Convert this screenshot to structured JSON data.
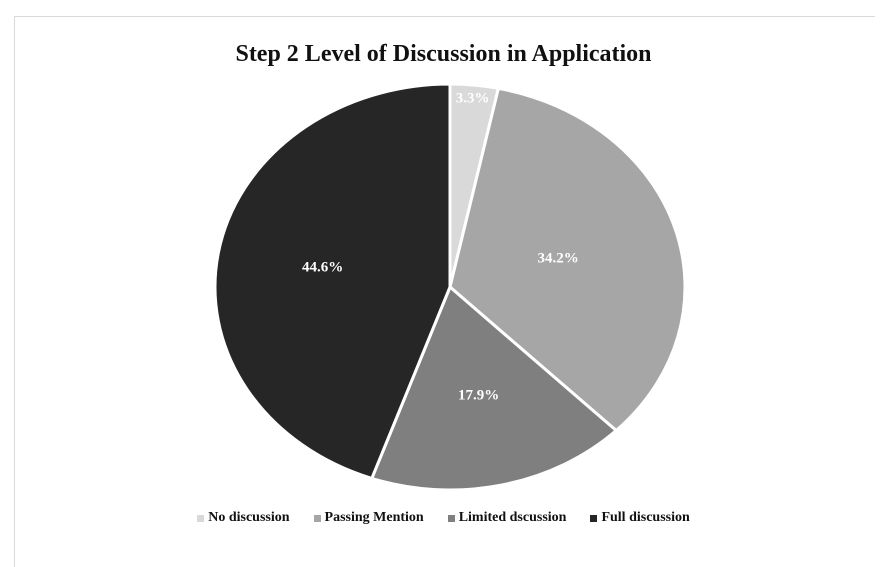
{
  "chart_data": {
    "type": "pie",
    "title": "Step 2 Level of Discussion in Application",
    "slices": [
      {
        "name": "No discussion",
        "value": 3.3,
        "label": "3.3%",
        "color": "#d9d9d9"
      },
      {
        "name": "Passing Mention",
        "value": 34.2,
        "label": "34.2%",
        "color": "#a6a6a6"
      },
      {
        "name": "Limited dscussion",
        "value": 17.9,
        "label": "17.9%",
        "color": "#7f7f7f"
      },
      {
        "name": "Full discussion",
        "value": 44.6,
        "label": "44.6%",
        "color": "#262626"
      }
    ],
    "legend": "bottom",
    "start_angle": "12 o'clock",
    "direction": "clockwise"
  }
}
